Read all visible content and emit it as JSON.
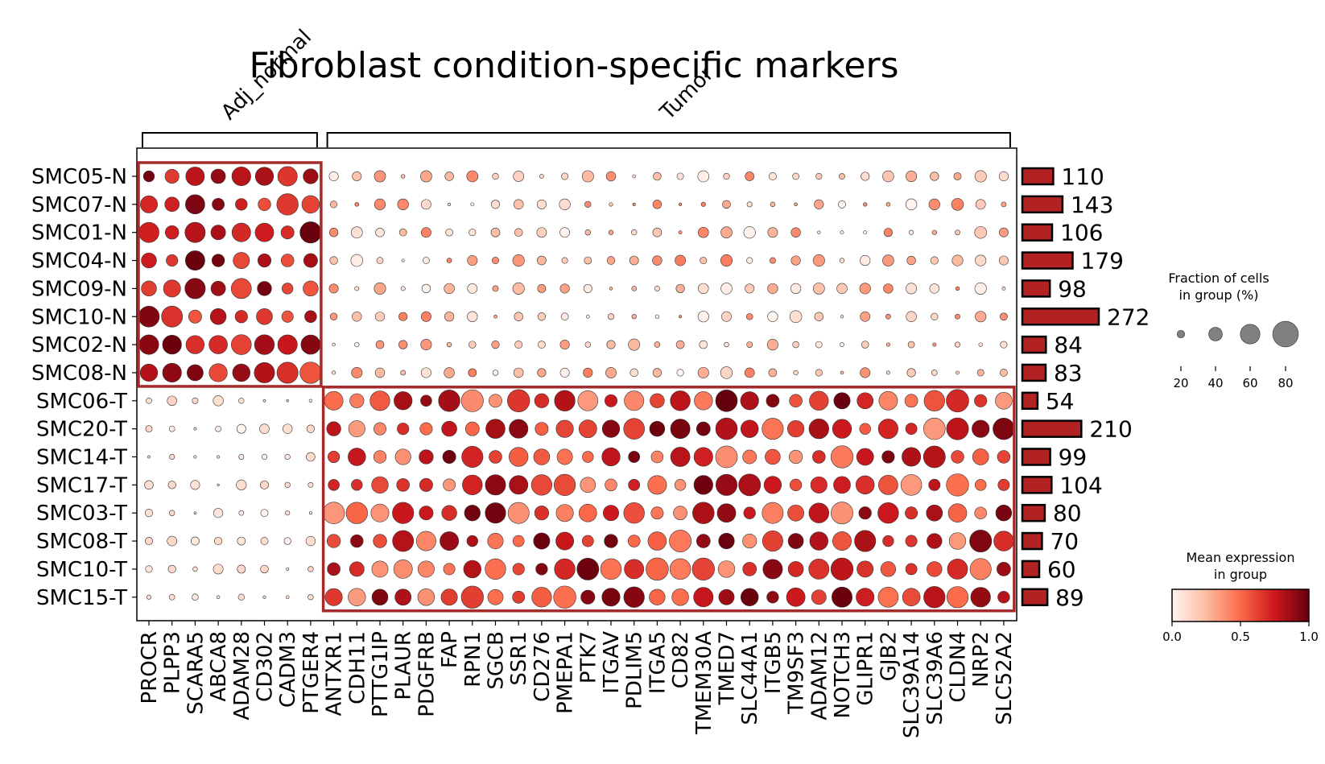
{
  "chart_data": {
    "type": "dotplot",
    "title": "Fibroblast condition-specific markers",
    "groups": [
      {
        "label": "Adj_normal",
        "start": 0,
        "end": 7
      },
      {
        "label": "Tumor",
        "start": 8,
        "end": 37
      }
    ],
    "genes": [
      "PROCR",
      "PLPP3",
      "SCARA5",
      "ABCA8",
      "ADAM28",
      "CD302",
      "CADM3",
      "PTGER4",
      "ANTXR1",
      "CDH11",
      "PTTG1IP",
      "PLAUR",
      "PDGFRB",
      "FAP",
      "RPN1",
      "SGCB",
      "SSR1",
      "CD276",
      "PMEPA1",
      "PTK7",
      "ITGAV",
      "PDLIM5",
      "ITGA5",
      "CD82",
      "TMEM30A",
      "TMED7",
      "SLC44A1",
      "ITGB5",
      "TM9SF3",
      "ADAM12",
      "NOTCH3",
      "GLIPR1",
      "GJB2",
      "SLC39A14",
      "SLC39A6",
      "CLDN4",
      "NRP2",
      "SLC52A2"
    ],
    "samples": [
      "SMC05-N",
      "SMC07-N",
      "SMC01-N",
      "SMC04-N",
      "SMC09-N",
      "SMC10-N",
      "SMC02-N",
      "SMC08-N",
      "SMC06-T",
      "SMC20-T",
      "SMC14-T",
      "SMC17-T",
      "SMC03-T",
      "SMC08-T",
      "SMC10-T",
      "SMC15-T"
    ],
    "cell_counts": [
      110,
      143,
      106,
      179,
      98,
      272,
      84,
      83,
      54,
      210,
      99,
      104,
      80,
      70,
      60,
      89
    ],
    "dot_size_legend": {
      "title": "Fraction of cells\nin group (%)",
      "values": [
        20,
        40,
        60,
        80
      ]
    },
    "color_legend": {
      "title": "Mean expression\nin group",
      "ticks": [
        "0.0",
        "0.5",
        "1.0"
      ],
      "range": [
        0,
        1
      ],
      "colormap": "Reds"
    },
    "highlight_boxes": [
      {
        "rows": [
          0,
          7
        ],
        "cols": [
          0,
          7
        ]
      },
      {
        "rows": [
          8,
          15
        ],
        "cols": [
          8,
          37
        ]
      }
    ],
    "colors": {
      "bar_fill": "#b22222",
      "highlight_box": "#a52a2a"
    }
  }
}
